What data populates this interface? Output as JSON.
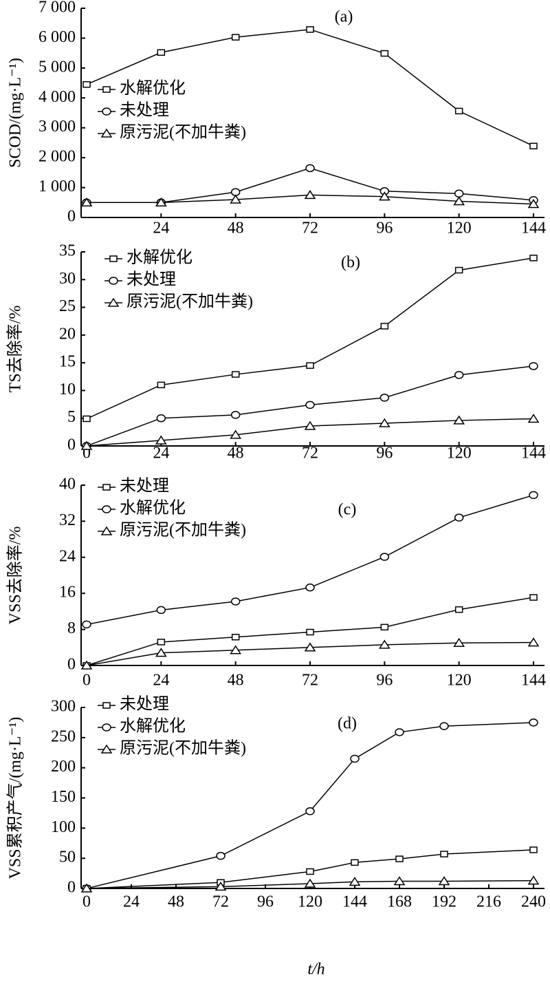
{
  "chart_data": [
    {
      "type": "line",
      "annotation": "(a)",
      "ylabel": "SCOD/(mg·L⁻¹)",
      "x": [
        0,
        24,
        48,
        72,
        96,
        120,
        144
      ],
      "xlim": [
        0,
        144
      ],
      "xticks": [
        24,
        48,
        72,
        96,
        120,
        144
      ],
      "ylim": [
        0,
        7000
      ],
      "yticks": [
        0,
        {
          "value": 1000,
          "label": "1 000"
        },
        {
          "value": 2000,
          "label": "2 000"
        },
        {
          "value": 3000,
          "label": "3 000"
        },
        {
          "value": 4000,
          "label": "4 000"
        },
        {
          "value": 5000,
          "label": "5 000"
        },
        {
          "value": 6000,
          "label": "6 000"
        },
        {
          "value": 7000,
          "label": "7 000"
        }
      ],
      "series": [
        {
          "name": "水解优化",
          "marker": "square",
          "color": "#000000",
          "values": [
            4450,
            5520,
            6030,
            6290,
            5490,
            3560,
            2390
          ]
        },
        {
          "name": "未处理",
          "marker": "circle",
          "color": "#000000",
          "values": [
            500,
            500,
            850,
            1650,
            880,
            800,
            580
          ]
        },
        {
          "name": "原污泥(不加牛粪)",
          "marker": "triangle",
          "color": "#000000",
          "values": [
            500,
            500,
            600,
            750,
            700,
            540,
            450
          ]
        }
      ]
    },
    {
      "type": "line",
      "annotation": "(b)",
      "ylabel": "TS去除率/%",
      "x": [
        0,
        24,
        48,
        72,
        96,
        120,
        144
      ],
      "xlim": [
        0,
        144
      ],
      "xticks": [
        0,
        24,
        48,
        72,
        96,
        120,
        144
      ],
      "ylim": [
        0,
        35
      ],
      "yticks": [
        0,
        5,
        10,
        15,
        20,
        25,
        30,
        35
      ],
      "series": [
        {
          "name": "水解优化",
          "marker": "square",
          "color": "#000000",
          "values": [
            4.9,
            11,
            12.9,
            14.5,
            21.6,
            31.7,
            33.9
          ]
        },
        {
          "name": "未处理",
          "marker": "circle",
          "color": "#000000",
          "values": [
            0,
            5,
            5.6,
            7.4,
            8.7,
            12.8,
            14.4
          ]
        },
        {
          "name": "原污泥(不加牛粪)",
          "marker": "triangle",
          "color": "#000000",
          "values": [
            0,
            1,
            2,
            3.6,
            4.1,
            4.6,
            4.9
          ]
        }
      ]
    },
    {
      "type": "line",
      "annotation": "(c)",
      "ylabel": "VSS去除率/%",
      "x": [
        0,
        24,
        48,
        72,
        96,
        120,
        144
      ],
      "xlim": [
        0,
        144
      ],
      "xticks": [
        0,
        24,
        48,
        72,
        96,
        120,
        144
      ],
      "ylim": [
        0,
        40
      ],
      "yticks": [
        0,
        8,
        16,
        24,
        32,
        40
      ],
      "series": [
        {
          "name": "未处理",
          "marker": "square",
          "color": "#000000",
          "values": [
            0,
            5.2,
            6.3,
            7.4,
            8.5,
            12.4,
            15.1
          ]
        },
        {
          "name": "水解优化",
          "marker": "circle",
          "color": "#000000",
          "values": [
            9.1,
            12.3,
            14.2,
            17.3,
            24.1,
            32.8,
            37.8
          ]
        },
        {
          "name": "原污泥(不加牛粪)",
          "marker": "triangle",
          "color": "#000000",
          "values": [
            0,
            2.8,
            3.4,
            4,
            4.6,
            5,
            5.1
          ]
        }
      ]
    },
    {
      "type": "line",
      "annotation": "(d)",
      "ylabel": "VSS累积产气/(mg·L⁻¹)",
      "xlabel": "t/h",
      "x": [
        0,
        72,
        120,
        144,
        168,
        192,
        240
      ],
      "xlim": [
        0,
        240
      ],
      "xticks": [
        0,
        24,
        48,
        72,
        96,
        120,
        144,
        168,
        192,
        216,
        240
      ],
      "ylim": [
        0,
        300
      ],
      "yticks": [
        0,
        50,
        100,
        150,
        200,
        250,
        300
      ],
      "series": [
        {
          "name": "未处理",
          "marker": "square",
          "color": "#000000",
          "values": [
            0,
            10,
            28,
            43,
            49,
            57,
            64
          ]
        },
        {
          "name": "水解优化",
          "marker": "circle",
          "color": "#000000",
          "values": [
            0,
            54,
            128,
            215,
            259,
            269,
            275
          ]
        },
        {
          "name": "原污泥(不加牛粪)",
          "marker": "triangle",
          "color": "#000000",
          "values": [
            0,
            3,
            8,
            11,
            12,
            12,
            13
          ]
        }
      ]
    }
  ]
}
